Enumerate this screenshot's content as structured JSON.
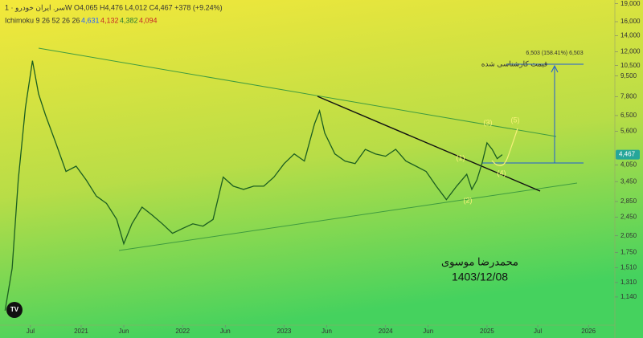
{
  "chart_data": {
    "type": "line",
    "symbol_title": "سر. ایران خودرو · 1W",
    "ohlc_text": "O4,065 H4,476 L4,012 C4,467 +378 (+9.24%)",
    "indicator": {
      "name": "Ichimoku 9 26 52 26 26",
      "values": [
        "4,631",
        "4,132",
        "4,382",
        "4,094"
      ],
      "colors": [
        "#2962ff",
        "#c62828",
        "#2e7d32",
        "#c62828"
      ]
    },
    "last_price": {
      "value": 4467,
      "label": "4,467"
    },
    "annotations": {
      "target": "6,503 (158.41%) 6,503",
      "target_caption": "قیمت کارشناسی شده",
      "author": "محمدرضا موسوی",
      "date": "1403/12/08",
      "waves": [
        "(1)",
        "(2)",
        "(3)",
        "(4)",
        "(5)"
      ]
    },
    "x": [
      2020.25,
      2020.32,
      2020.38,
      2020.45,
      2020.52,
      2020.58,
      2020.65,
      2020.75,
      2020.85,
      2020.95,
      2021.05,
      2021.15,
      2021.25,
      2021.35,
      2021.42,
      2021.5,
      2021.6,
      2021.7,
      2021.8,
      2021.9,
      2022.0,
      2022.1,
      2022.2,
      2022.3,
      2022.4,
      2022.5,
      2022.6,
      2022.7,
      2022.8,
      2022.9,
      2023.0,
      2023.1,
      2023.2,
      2023.3,
      2023.35,
      2023.4,
      2023.5,
      2023.6,
      2023.7,
      2023.8,
      2023.9,
      2024.0,
      2024.1,
      2024.2,
      2024.3,
      2024.4,
      2024.5,
      2024.6,
      2024.7,
      2024.8,
      2024.85,
      2024.9,
      2024.95,
      2025.0,
      2025.05,
      2025.1,
      2025.15
    ],
    "values": [
      1000,
      1500,
      3500,
      7000,
      11000,
      8000,
      6500,
      5000,
      3800,
      4000,
      3500,
      3000,
      2800,
      2400,
      1900,
      2300,
      2700,
      2500,
      2300,
      2100,
      2200,
      2300,
      2250,
      2400,
      3600,
      3300,
      3200,
      3300,
      3300,
      3600,
      4100,
      4500,
      4200,
      6000,
      6800,
      5500,
      4500,
      4200,
      4100,
      4700,
      4500,
      4400,
      4700,
      4200,
      4000,
      3800,
      3300,
      2900,
      3300,
      3700,
      3200,
      3500,
      4100,
      5000,
      4700,
      4300,
      4467
    ],
    "color": "#1b5e20",
    "log_y": true,
    "xlim": [
      2020.2,
      2026.26
    ],
    "xticks": [
      {
        "value": 2020.5,
        "label": "Jul"
      },
      2021,
      {
        "value": 2021.42,
        "label": "Jun"
      },
      2022,
      {
        "value": 2022.42,
        "label": "Jun"
      },
      2023,
      {
        "value": 2023.42,
        "label": "Jun"
      },
      2024,
      {
        "value": 2024.42,
        "label": "Jun"
      },
      2025,
      {
        "value": 2025.5,
        "label": "Jul"
      },
      2026
    ],
    "ylim": [
      870,
      19700
    ],
    "yticks": [
      {
        "value": 1140,
        "label": "1,140"
      },
      {
        "value": 1310,
        "label": "1,310"
      },
      {
        "value": 1510,
        "label": "1,510"
      },
      {
        "value": 1750,
        "label": "1,750"
      },
      {
        "value": 2050,
        "label": "2,050"
      },
      {
        "value": 2450,
        "label": "2,450"
      },
      {
        "value": 2850,
        "label": "2,850"
      },
      {
        "value": 3450,
        "label": "3,450"
      },
      {
        "value": 4050,
        "label": "4,050"
      },
      {
        "value": 5600,
        "label": "5,600"
      },
      {
        "value": 6500,
        "label": "6,500"
      },
      {
        "value": 7800,
        "label": "7,800"
      },
      {
        "value": 9500,
        "label": "9,500"
      },
      {
        "value": 10500,
        "label": "10,500"
      },
      {
        "value": 12000,
        "label": "12,000"
      },
      {
        "value": 14000,
        "label": "14,000"
      },
      {
        "value": 16000,
        "label": "16,000"
      },
      {
        "value": 19000,
        "label": "19,000"
      }
    ]
  }
}
